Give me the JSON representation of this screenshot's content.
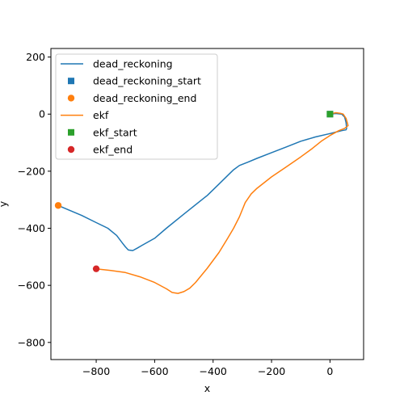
{
  "chart_data": {
    "type": "line",
    "title": "",
    "xlabel": "x",
    "ylabel": "y",
    "xlim": [
      -955,
      115
    ],
    "ylim": [
      -860,
      230
    ],
    "xticks": [
      -800,
      -600,
      -400,
      -200,
      0
    ],
    "xtick_labels": [
      "−800",
      "−600",
      "−400",
      "−200",
      "0"
    ],
    "yticks": [
      -800,
      -600,
      -400,
      -200,
      0,
      200
    ],
    "ytick_labels": [
      "−800",
      "−600",
      "−400",
      "−200",
      "0",
      "200"
    ],
    "grid": false,
    "legend_position": "top-left",
    "legend": [
      {
        "label": "dead_reckoning",
        "kind": "line",
        "color": "#1f77b4"
      },
      {
        "label": "dead_reckoning_start",
        "kind": "square",
        "color": "#1f77b4"
      },
      {
        "label": "dead_reckoning_end",
        "kind": "circle",
        "color": "#ff7f0e"
      },
      {
        "label": "ekf",
        "kind": "line",
        "color": "#ff7f0e"
      },
      {
        "label": "ekf_start",
        "kind": "square",
        "color": "#2ca02c"
      },
      {
        "label": "ekf_end",
        "kind": "circle",
        "color": "#d62728"
      }
    ],
    "series": [
      {
        "name": "dead_reckoning",
        "color": "#1f77b4",
        "x": [
          0,
          20,
          40,
          50,
          55,
          57,
          55,
          40,
          20,
          0,
          -50,
          -100,
          -150,
          -200,
          -250,
          -280,
          -310,
          -330,
          -350,
          -380,
          -420,
          -500,
          -560,
          -600,
          -640,
          -660,
          -675,
          -690,
          -700,
          -710,
          -730,
          -760,
          -800,
          -850,
          -900,
          -930
        ],
        "y": [
          0,
          2,
          0,
          -10,
          -30,
          -50,
          -55,
          -58,
          -63,
          -68,
          -80,
          -95,
          -115,
          -135,
          -155,
          -168,
          -180,
          -195,
          -215,
          -245,
          -285,
          -350,
          -400,
          -435,
          -458,
          -470,
          -478,
          -476,
          -465,
          -452,
          -425,
          -400,
          -380,
          -355,
          -333,
          -320
        ]
      },
      {
        "name": "ekf",
        "color": "#ff7f0e",
        "x": [
          0,
          20,
          35,
          45,
          55,
          62,
          50,
          30,
          0,
          -30,
          -60,
          -100,
          -150,
          -200,
          -250,
          -270,
          -290,
          -310,
          -330,
          -350,
          -380,
          -420,
          -460,
          -480,
          -500,
          -520,
          -540,
          -560,
          -600,
          -650,
          -700,
          -750,
          -800
        ],
        "y": [
          0,
          5,
          3,
          0,
          -15,
          -40,
          -50,
          -58,
          -75,
          -95,
          -120,
          -150,
          -185,
          -220,
          -260,
          -280,
          -310,
          -360,
          -400,
          -435,
          -485,
          -540,
          -590,
          -610,
          -622,
          -628,
          -625,
          -612,
          -590,
          -570,
          -555,
          -548,
          -542
        ]
      }
    ],
    "markers": [
      {
        "name": "dead_reckoning_start",
        "shape": "square",
        "color": "#1f77b4",
        "x": 0,
        "y": 0
      },
      {
        "name": "dead_reckoning_end",
        "shape": "circle",
        "color": "#ff7f0e",
        "x": -930,
        "y": -320
      },
      {
        "name": "ekf_start",
        "shape": "square",
        "color": "#2ca02c",
        "x": 0,
        "y": 0
      },
      {
        "name": "ekf_end",
        "shape": "circle",
        "color": "#d62728",
        "x": -800,
        "y": -542
      }
    ]
  }
}
